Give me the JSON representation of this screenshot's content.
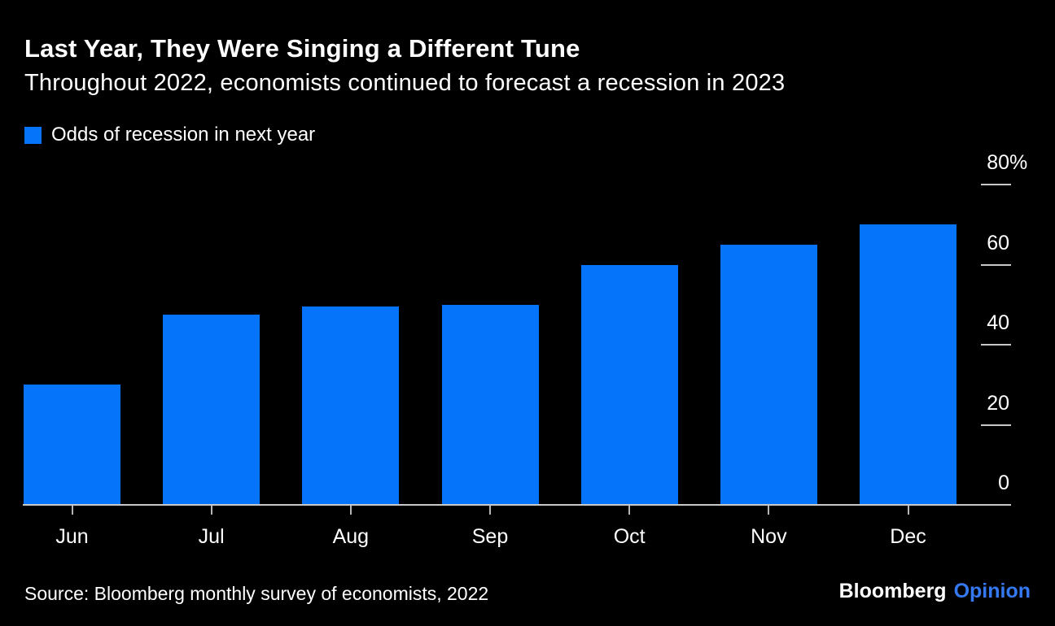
{
  "header": {
    "title": "Last Year, They Were Singing a Different Tune",
    "subtitle": "Throughout 2022, economists continued to forecast a recession in 2023"
  },
  "legend": {
    "label": "Odds of recession in next year"
  },
  "chart_data": {
    "type": "bar",
    "categories": [
      "Jun",
      "Jul",
      "Aug",
      "Sep",
      "Oct",
      "Nov",
      "Dec"
    ],
    "values": [
      30,
      47.5,
      49.5,
      50,
      60,
      65,
      70
    ],
    "series_name": "Odds of recession in next year",
    "title": "Last Year, They Were Singing a Different Tune",
    "subtitle": "Throughout 2022, economists continued to forecast a recession in 2023",
    "xlabel": "",
    "ylabel": "",
    "ylim": [
      0,
      80
    ],
    "y_ticks": [
      0,
      20,
      40,
      60,
      80
    ],
    "y_tick_labels": [
      "0",
      "20",
      "40",
      "60",
      "80%"
    ],
    "axis_side": "right",
    "grid": false,
    "legend_position": "top-left",
    "bar_color": "#0573fa"
  },
  "footer": {
    "source": "Source: Bloomberg monthly survey of economists, 2022",
    "brand": {
      "name": "Bloomberg",
      "product": "Opinion"
    }
  },
  "colors": {
    "background": "#000000",
    "text": "#ffffff",
    "bar": "#0573fa",
    "axis": "#c8c8c8",
    "brand_product": "#3579f2"
  }
}
